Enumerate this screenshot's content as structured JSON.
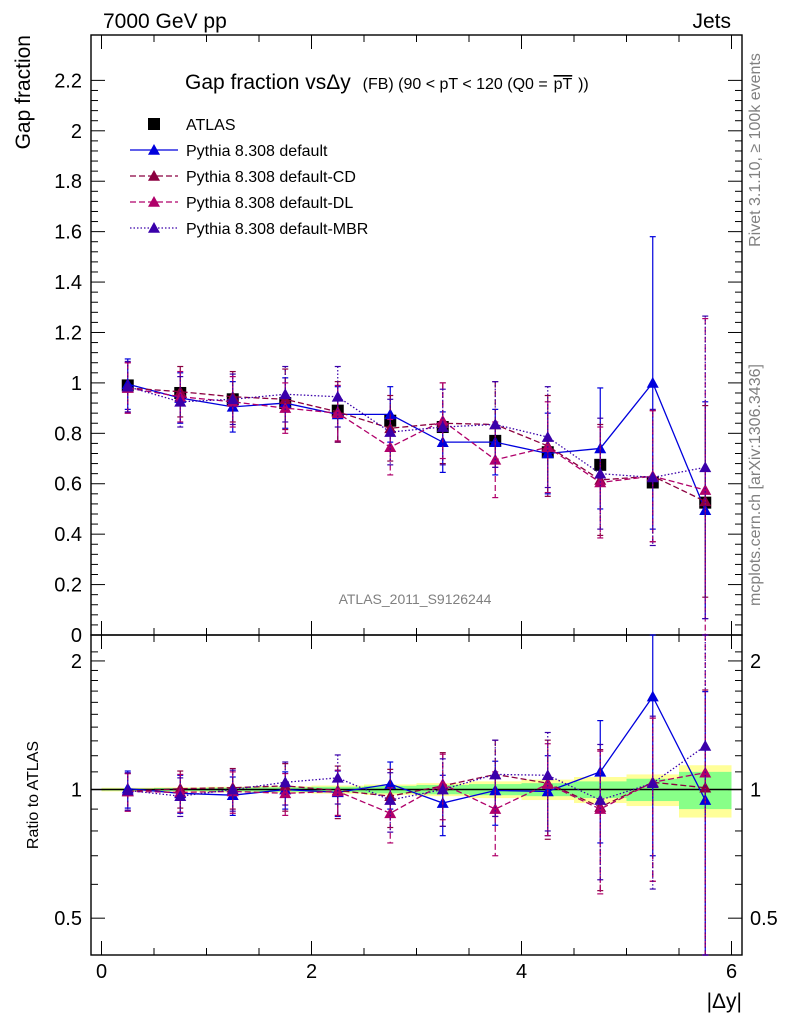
{
  "header": {
    "energy": "7000 GeV pp",
    "category": "Jets",
    "rivet": "Rivet 3.1.10, ≥ 100k events",
    "mcplots": "mcplots.cern.ch [arXiv:1306.3436]",
    "analysis": "ATLAS_2011_S9126244"
  },
  "chart_data": [
    {
      "type": "scatter",
      "panel": "main",
      "title_main": "Gap fraction vsΔy",
      "title_sub": "(FB)  (90 < pT < 120 (Q0 =",
      "title_overline": "pT",
      "title_close": "))",
      "ylabel": "Gap fraction",
      "xlabel": "|Δy|",
      "xlim": [
        -0.1,
        6.1
      ],
      "ylim": [
        0,
        2.38
      ],
      "x_ticks": [
        0,
        2,
        4,
        6
      ],
      "y_ticks": [
        0,
        0.2,
        0.4,
        0.6,
        0.8,
        1,
        1.2,
        1.4,
        1.6,
        1.8,
        2,
        2.2
      ],
      "y_tick_labels": [
        "0",
        "0.2",
        "0.4",
        "0.6",
        "0.8",
        "1",
        "1.2",
        "1.4",
        "1.6",
        "1.8",
        "2",
        "2.2"
      ],
      "x": [
        0.25,
        0.75,
        1.25,
        1.75,
        2.25,
        2.75,
        3.25,
        3.75,
        4.25,
        4.75,
        5.25,
        5.75
      ],
      "series": [
        {
          "name": "ATLAS",
          "color": "#000000",
          "style": "data",
          "values": [
            0.99,
            0.96,
            0.935,
            0.92,
            0.89,
            0.85,
            0.825,
            0.77,
            0.725,
            0.675,
            0.605,
            0.525
          ],
          "errors": [
            0.02,
            0.02,
            0.02,
            0.02,
            0.02,
            0.02,
            0.02,
            0.02,
            0.02,
            0.02,
            0.02,
            0.02
          ]
        },
        {
          "name": "Pythia 8.308 default",
          "color": "#0000dd",
          "style": "solid",
          "values": [
            0.995,
            0.94,
            0.905,
            0.92,
            0.875,
            0.875,
            0.765,
            0.765,
            0.72,
            0.74,
            1.0,
            0.495
          ],
          "errors": [
            0.1,
            0.1,
            0.1,
            0.1,
            0.11,
            0.11,
            0.12,
            0.13,
            0.16,
            0.24,
            0.58,
            0.43
          ]
        },
        {
          "name": "Pythia 8.308 default-CD",
          "color": "#8b0040",
          "style": "dashed",
          "values": [
            0.98,
            0.965,
            0.945,
            0.935,
            0.885,
            0.82,
            0.84,
            0.835,
            0.75,
            0.615,
            0.63,
            0.53
          ],
          "errors": [
            0.1,
            0.1,
            0.1,
            0.12,
            0.12,
            0.13,
            0.16,
            0.17,
            0.2,
            0.22,
            0.26,
            0.38
          ]
        },
        {
          "name": "Pythia 8.308 default-DL",
          "color": "#b0006a",
          "style": "dashed",
          "values": [
            0.98,
            0.945,
            0.925,
            0.9,
            0.88,
            0.745,
            0.85,
            0.695,
            0.745,
            0.605,
            0.63,
            0.575
          ],
          "errors": [
            0.1,
            0.1,
            0.1,
            0.1,
            0.11,
            0.11,
            0.15,
            0.15,
            0.18,
            0.22,
            0.26,
            0.68
          ]
        },
        {
          "name": "Pythia 8.308 default-MBR",
          "color": "#3a00aa",
          "style": "dotted",
          "values": [
            0.985,
            0.925,
            0.935,
            0.955,
            0.945,
            0.805,
            0.825,
            0.835,
            0.785,
            0.64,
            0.625,
            0.665
          ],
          "errors": [
            0.1,
            0.1,
            0.1,
            0.11,
            0.12,
            0.13,
            0.15,
            0.17,
            0.2,
            0.22,
            0.27,
            0.6
          ]
        }
      ],
      "grid": false,
      "legend": "top-left"
    },
    {
      "type": "scatter",
      "panel": "ratio",
      "ylabel": "Ratio to ATLAS",
      "xlabel": "|Δy|",
      "y_scale": "log",
      "xlim": [
        -0.1,
        6.1
      ],
      "ylim": [
        0.41,
        2.3
      ],
      "y_major_ticks": [
        0.5,
        1,
        2
      ],
      "y_major_labels": [
        "0.5",
        "1",
        "2"
      ],
      "x_ticks": [
        0,
        2,
        4,
        6
      ],
      "x_tick_labels": [
        "0",
        "2",
        "4",
        "6"
      ],
      "x": [
        0.25,
        0.75,
        1.25,
        1.75,
        2.25,
        2.75,
        3.25,
        3.75,
        4.25,
        4.75,
        5.25,
        5.75
      ],
      "uncertainty_bands": {
        "stat": [
          0.005,
          0.008,
          0.01,
          0.012,
          0.015,
          0.02,
          0.025,
          0.03,
          0.035,
          0.045,
          0.06,
          0.1
        ],
        "total": [
          0.01,
          0.012,
          0.015,
          0.018,
          0.022,
          0.028,
          0.035,
          0.045,
          0.055,
          0.07,
          0.085,
          0.14
        ],
        "stat_color": "#88ff88",
        "total_color": "#ffff99"
      },
      "series": [
        {
          "name": "Pythia 8.308 default",
          "values": [
            1.005,
            0.98,
            0.97,
            1.0,
            0.985,
            1.03,
            0.93,
            0.995,
            0.99,
            1.1,
            1.65,
            0.945
          ],
          "errors": [
            0.1,
            0.1,
            0.1,
            0.1,
            0.12,
            0.13,
            0.15,
            0.17,
            0.21,
            0.35,
            0.95,
            0.75
          ]
        },
        {
          "name": "Pythia 8.308 default-CD",
          "values": [
            0.99,
            1.005,
            1.01,
            1.02,
            0.995,
            0.965,
            1.02,
            1.085,
            1.035,
            0.91,
            1.04,
            1.01
          ],
          "errors": [
            0.1,
            0.1,
            0.11,
            0.13,
            0.14,
            0.15,
            0.2,
            0.22,
            0.27,
            0.33,
            0.43,
            0.7
          ]
        },
        {
          "name": "Pythia 8.308 default-DL",
          "values": [
            0.99,
            0.985,
            0.99,
            0.98,
            0.99,
            0.88,
            1.03,
            0.9,
            1.03,
            0.9,
            1.04,
            1.095
          ],
          "errors": [
            0.1,
            0.1,
            0.11,
            0.11,
            0.12,
            0.13,
            0.18,
            0.2,
            0.25,
            0.33,
            0.43,
            1.3
          ]
        },
        {
          "name": "Pythia 8.308 default-MBR",
          "values": [
            0.995,
            0.965,
            1.0,
            1.04,
            1.065,
            0.945,
            1.0,
            1.085,
            1.08,
            0.945,
            1.035,
            1.265
          ],
          "errors": [
            0.1,
            0.1,
            0.11,
            0.12,
            0.14,
            0.15,
            0.18,
            0.22,
            0.28,
            0.33,
            0.45,
            1.1
          ]
        }
      ],
      "grid": false
    }
  ]
}
